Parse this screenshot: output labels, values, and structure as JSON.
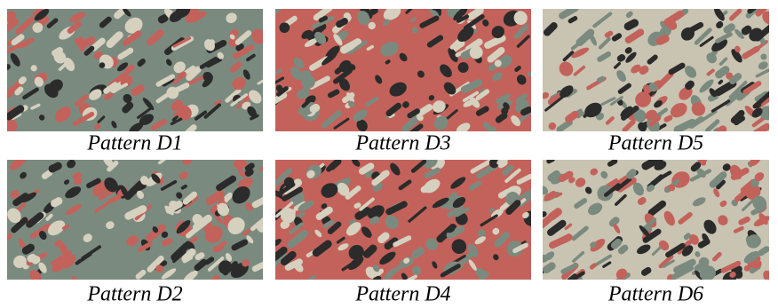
{
  "figure": {
    "panels": [
      {
        "caption": "Pattern D1"
      },
      {
        "caption": "Pattern D3"
      },
      {
        "caption": "Pattern D5"
      },
      {
        "caption": "Pattern D2"
      },
      {
        "caption": "Pattern D4"
      },
      {
        "caption": "Pattern D6"
      }
    ]
  }
}
